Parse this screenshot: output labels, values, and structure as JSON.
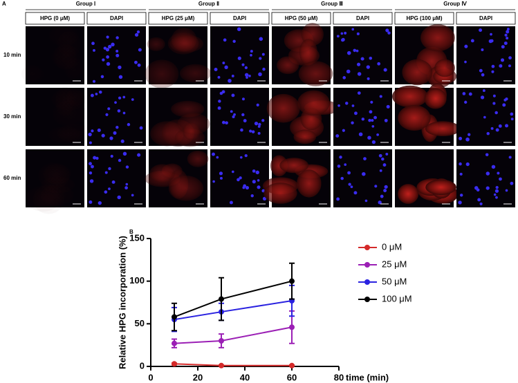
{
  "panel_a": {
    "label": "A",
    "groups": [
      "Group Ⅰ",
      "Group Ⅱ",
      "Group Ⅲ",
      "Group Ⅳ"
    ],
    "columns": [
      "HPG (0 μM)",
      "DAPI",
      "HPG (25 μM)",
      "DAPI",
      "HPG (50 μM)",
      "DAPI",
      "HPG (100 μM)",
      "DAPI"
    ],
    "rows": [
      "10 min",
      "30 min",
      "60 min"
    ]
  },
  "chart_data": {
    "type": "line",
    "panel_label": "B",
    "ylabel": "Relative HPG incorporation (%)",
    "xlabel": "time (min)",
    "x": [
      10,
      30,
      60
    ],
    "series": [
      {
        "name": "0 μM",
        "color": "#d42a2a",
        "values": [
          3,
          1,
          1
        ],
        "errors": [
          1,
          0.5,
          0.5
        ]
      },
      {
        "name": "25 μM",
        "color": "#9b1fb5",
        "values": [
          27,
          30,
          46
        ],
        "errors": [
          5,
          8,
          19
        ]
      },
      {
        "name": "50 μM",
        "color": "#2a22e0",
        "values": [
          55,
          64,
          77
        ],
        "errors": [
          14,
          10,
          18
        ]
      },
      {
        "name": "100 μM",
        "color": "#000000",
        "values": [
          58,
          79,
          100
        ],
        "errors": [
          16,
          25,
          21
        ]
      }
    ],
    "xlim": [
      0,
      80
    ],
    "xticks": [
      0,
      20,
      40,
      60,
      80
    ],
    "ylim": [
      0,
      150
    ],
    "yticks": [
      0,
      50,
      100,
      150
    ]
  }
}
